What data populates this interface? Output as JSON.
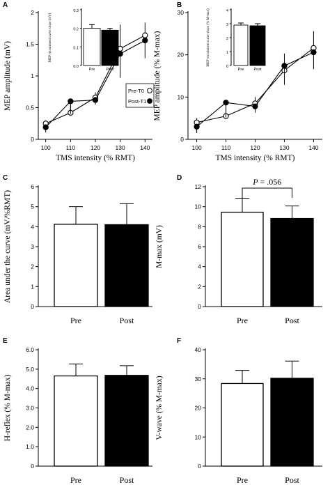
{
  "chart_data": [
    {
      "panel": "A",
      "type": "line",
      "ylabel": "MEP amplitude (mV)",
      "xlabel": "TMS intensity (% RMT)",
      "x": [
        100,
        110,
        120,
        130,
        140
      ],
      "xticks": [
        "100",
        "110",
        "120",
        "130",
        "140"
      ],
      "xlim": [
        97,
        143
      ],
      "ylim": [
        0,
        2.0
      ],
      "yticks": [
        "0",
        "0.5",
        "1",
        "1.5",
        "2"
      ],
      "ytick_values": [
        0,
        0.5,
        1,
        1.5,
        2
      ],
      "series": [
        {
          "name": "Pre-T0",
          "marker": "open",
          "values": [
            0.25,
            0.42,
            0.66,
            1.43,
            1.64
          ],
          "err": [
            0.05,
            0.12,
            0.08,
            0.38,
            0.2
          ]
        },
        {
          "name": "Post-T1",
          "marker": "filled",
          "values": [
            0.19,
            0.6,
            0.62,
            1.35,
            1.56
          ],
          "err": [
            0.08,
            0.2,
            0.07,
            0.38,
            0.28
          ]
        }
      ],
      "legend": "bottom-right",
      "inset": {
        "type": "bar",
        "ylabel": "MEP recruitment curve slope (mV)",
        "categories": [
          "Pre",
          "Post"
        ],
        "values": [
          0.2,
          0.19
        ],
        "err": [
          0.02,
          0.01
        ],
        "ylim": [
          0,
          0.3
        ],
        "yticks": [
          "0.0",
          "0.1",
          "0.2",
          "0.3"
        ],
        "ytick_values": [
          0,
          0.1,
          0.2,
          0.3
        ],
        "fills": [
          "#ffffff",
          "#000000"
        ]
      }
    },
    {
      "panel": "B",
      "type": "line",
      "ylabel": "MEP amplitude (% M-max)",
      "xlabel": "TMS intensity (% RMT)",
      "x": [
        100,
        110,
        120,
        130,
        140
      ],
      "xticks": [
        "100",
        "110",
        "120",
        "130",
        "140"
      ],
      "xlim": [
        97,
        143
      ],
      "ylim": [
        0,
        30
      ],
      "yticks": [
        "0",
        "10",
        "20",
        "30"
      ],
      "ytick_values": [
        0,
        10,
        20,
        30
      ],
      "series": [
        {
          "name": "Pre-T0",
          "marker": "open",
          "values": [
            4.0,
            5.5,
            8.5,
            16.3,
            21.6
          ],
          "err": [
            1.0,
            2.0,
            1.5,
            4.0,
            4.0
          ]
        },
        {
          "name": "Post-T1",
          "marker": "filled",
          "values": [
            3.0,
            8.7,
            7.8,
            17.4,
            20.6
          ],
          "err": [
            1.5,
            3.5,
            1.5,
            4.5,
            4.0
          ]
        }
      ],
      "inset": {
        "type": "bar",
        "ylabel": "MEP recruitment curve slope (% M-max)",
        "categories": [
          "Pre",
          "Post"
        ],
        "values": [
          2.9,
          2.85
        ],
        "err": [
          0.15,
          0.15
        ],
        "ylim": [
          0,
          4
        ],
        "yticks": [
          "0",
          "1",
          "2",
          "3",
          "4"
        ],
        "ytick_values": [
          0,
          1,
          2,
          3,
          4
        ],
        "fills": [
          "#ffffff",
          "#000000"
        ]
      }
    },
    {
      "panel": "C",
      "type": "bar",
      "ylabel": "Area under the curve (mV/%RMT)",
      "categories": [
        "Pre",
        "Post"
      ],
      "values": [
        4.12,
        4.1
      ],
      "err": [
        0.88,
        1.05
      ],
      "ylim": [
        0,
        6
      ],
      "yticks": [
        "0",
        "1",
        "2",
        "3",
        "4",
        "5",
        "6"
      ],
      "ytick_values": [
        0,
        1,
        2,
        3,
        4,
        5,
        6
      ],
      "fills": [
        "#ffffff",
        "#000000"
      ]
    },
    {
      "panel": "D",
      "type": "bar",
      "ylabel": "M-max (mV)",
      "categories": [
        "Pre",
        "Post"
      ],
      "values": [
        9.45,
        8.82
      ],
      "err": [
        1.4,
        1.25
      ],
      "ylim": [
        0,
        12
      ],
      "yticks": [
        "0",
        "2",
        "4",
        "6",
        "8",
        "10",
        "12"
      ],
      "ytick_values": [
        0,
        2,
        4,
        6,
        8,
        10,
        12
      ],
      "fills": [
        "#ffffff",
        "#000000"
      ],
      "annotation": {
        "p_symbol": "P",
        "p_value": " = .056"
      }
    },
    {
      "panel": "E",
      "type": "bar",
      "ylabel": "H-reflex (% M-max)",
      "categories": [
        "Pre",
        "Post"
      ],
      "values": [
        4.65,
        4.68
      ],
      "err": [
        0.62,
        0.5
      ],
      "ylim": [
        0,
        6
      ],
      "yticks": [
        "0",
        "1.0",
        "2.0",
        "3.0",
        "4.0",
        "5.0",
        "6.0"
      ],
      "ytick_values": [
        0,
        1,
        2,
        3,
        4,
        5,
        6
      ],
      "fills": [
        "#ffffff",
        "#000000"
      ]
    },
    {
      "panel": "F",
      "type": "bar",
      "ylabel": "V-wave (% M-max)",
      "categories": [
        "Pre",
        "Post"
      ],
      "values": [
        28.4,
        30.2
      ],
      "err": [
        4.5,
        5.9
      ],
      "ylim": [
        0,
        40
      ],
      "yticks": [
        "0",
        "10",
        "20",
        "30",
        "40"
      ],
      "ytick_values": [
        0,
        10,
        20,
        30,
        40
      ],
      "fills": [
        "#ffffff",
        "#000000"
      ]
    }
  ]
}
